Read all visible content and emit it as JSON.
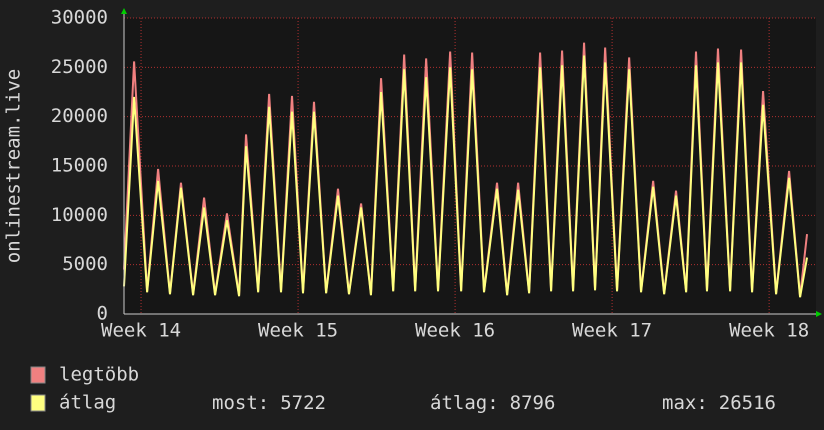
{
  "chart_data": {
    "type": "line",
    "y_label": "onlinestream.live",
    "x": [
      -0.76,
      -0.31,
      0.27,
      0.76,
      1.29,
      1.78,
      2.32,
      2.81,
      3.3,
      3.83,
      4.37,
      4.68,
      5.22,
      5.71,
      6.24,
      6.73,
      7.22,
      7.71,
      8.25,
      8.78,
      9.27,
      9.81,
      10.25,
      10.7,
      11.24,
      11.73,
      12.22,
      12.71,
      13.24,
      13.78,
      14.27,
      14.76,
      15.29,
      15.87,
      16.32,
      16.81,
      17.3,
      17.79,
      18.28,
      18.77,
      19.26,
      19.75,
      20.24,
      20.69,
      21.22,
      21.76,
      22.29,
      22.83,
      23.32,
      23.85,
      24.3,
      24.74,
      25.23,
      25.72,
      26.26,
      26.75,
      27.24,
      27.73,
      28.31,
      28.89,
      29.38,
      29.69
    ],
    "series": [
      {
        "name": "legtöbb",
        "color": "#f08080",
        "values": [
          4500,
          25600,
          2300,
          14700,
          2100,
          13300,
          2000,
          11800,
          2000,
          10200,
          1900,
          18200,
          2300,
          22300,
          2300,
          22100,
          2200,
          21500,
          2200,
          12700,
          2100,
          11200,
          2000,
          23900,
          2400,
          26300,
          2400,
          25900,
          2400,
          26600,
          2400,
          26500,
          2300,
          13300,
          2000,
          13300,
          2200,
          26500,
          2400,
          26700,
          2400,
          27500,
          2500,
          27000,
          2400,
          26000,
          2300,
          13500,
          2100,
          12500,
          2300,
          26600,
          2400,
          26900,
          2400,
          26800,
          2300,
          22600,
          2100,
          14500,
          1800,
          8100
        ]
      },
      {
        "name": "átlag",
        "color": "#ffff80",
        "values": [
          2800,
          22000,
          2200,
          13500,
          2000,
          12800,
          1900,
          10800,
          1900,
          9500,
          1800,
          17000,
          2200,
          21000,
          2200,
          20500,
          2100,
          20500,
          2100,
          12000,
          2000,
          10800,
          1900,
          22500,
          2300,
          24800,
          2300,
          24000,
          2300,
          25000,
          2300,
          24800,
          2200,
          12700,
          1900,
          12600,
          2100,
          25000,
          2300,
          25200,
          2300,
          26200,
          2400,
          25500,
          2300,
          24800,
          2200,
          12900,
          2000,
          12000,
          2200,
          25200,
          2300,
          25500,
          2300,
          25500,
          2200,
          21200,
          2000,
          13800,
          1700,
          5722
        ]
      }
    ],
    "xlim": [
      -0.76,
      30.09
    ],
    "xticks": [
      {
        "value": 0,
        "label": "Week 14"
      },
      {
        "value": 7,
        "label": "Week 15"
      },
      {
        "value": 14,
        "label": "Week 16"
      },
      {
        "value": 21,
        "label": "Week 17"
      },
      {
        "value": 28,
        "label": "Week 18"
      }
    ],
    "ylim": [
      0,
      30000
    ],
    "yticks": [
      0,
      5000,
      10000,
      15000,
      20000,
      25000,
      30000
    ],
    "grid": true,
    "stats": [
      {
        "label": "most:",
        "value": 5722
      },
      {
        "label": "átlag:",
        "value": 8796
      },
      {
        "label": "max:",
        "value": 26516
      }
    ]
  }
}
